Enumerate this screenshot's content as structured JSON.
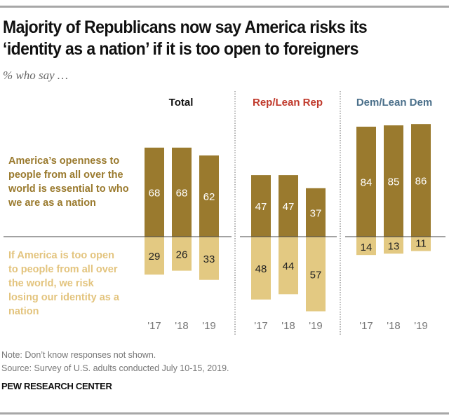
{
  "header": {
    "title": "Majority of Republicans now say America risks its ‘identity as a nation’ if it is too open to foreigners",
    "subtitle": "% who say …"
  },
  "colors": {
    "essential": "#9a7a2e",
    "risk": "#e3c982",
    "essential_label": "#9a7a2e",
    "risk_label": "#e3c47e",
    "rep": "#c0392b",
    "dem": "#4a6f8a",
    "essential_value_text": "#ffffff",
    "risk_value_text": "#222222"
  },
  "footer": {
    "note": "Note: Don’t know responses not shown.",
    "source": "Source: Survey of U.S. adults conducted July 10-15, 2019.",
    "brand": "PEW RESEARCH CENTER"
  },
  "chart_data": {
    "type": "bar",
    "title": "Majority of Republicans now say America risks its ‘identity as a nation’ if it is too open to foreigners",
    "subtitle": "% who say …",
    "categories": [
      "'17",
      "'18",
      "'19"
    ],
    "series_labels": {
      "essential": "America’s openness to people from all over the world is essential to who we are as a nation",
      "risk": "If America is too open to people from all over the world, we risk losing our identity as a nation"
    },
    "panels": [
      {
        "name": "Total",
        "essential": [
          68,
          68,
          62
        ],
        "risk": [
          29,
          26,
          33
        ]
      },
      {
        "name": "Rep/Lean Rep",
        "essential": [
          47,
          47,
          37
        ],
        "risk": [
          48,
          44,
          57
        ]
      },
      {
        "name": "Dem/Lean Dem",
        "essential": [
          84,
          85,
          86
        ],
        "risk": [
          14,
          13,
          11
        ]
      }
    ],
    "layout": "diverging stacked bars around a baseline, three panels",
    "ylim": [
      -60,
      90
    ]
  }
}
